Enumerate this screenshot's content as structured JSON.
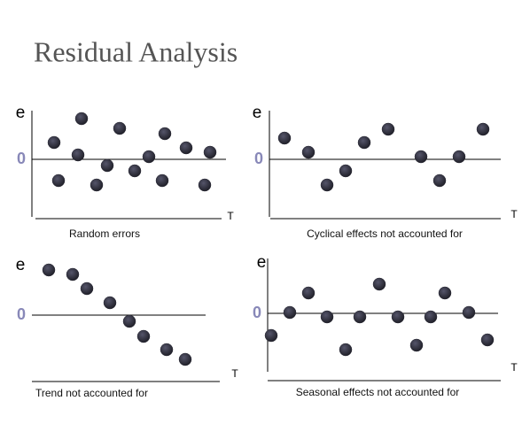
{
  "title": "Residual Analysis",
  "chart_data": [
    {
      "type": "scatter",
      "caption": "Random errors",
      "y_label": "e",
      "x_label": "T",
      "x": [
        25,
        30,
        52,
        56,
        73,
        85,
        99,
        116,
        132,
        147,
        150,
        174,
        195,
        201
      ],
      "values": [
        1.9,
        -2.4,
        0.5,
        4.6,
        -2.9,
        -0.7,
        3.5,
        -1.3,
        0.3,
        -2.4,
        2.9,
        1.3,
        -2.9,
        0.8
      ],
      "xlim": [
        0,
        219
      ],
      "ylim": [
        -6.5,
        5.5
      ],
      "yticks": [
        0
      ],
      "y_axis_line": true,
      "color": "#2b2b36"
    },
    {
      "type": "scatter",
      "caption": "Cyclical effects not accounted for",
      "y_label": "e",
      "x_label": "T",
      "x": [
        17,
        44,
        65,
        86,
        107,
        134,
        171,
        192,
        214,
        241
      ],
      "values": [
        2.4,
        0.8,
        -2.9,
        -1.3,
        1.9,
        3.4,
        0.3,
        -2.4,
        0.3,
        3.4
      ],
      "xlim": [
        0,
        261
      ],
      "ylim": [
        -6.5,
        5.5
      ],
      "yticks": [
        0
      ],
      "y_axis_line": true,
      "color": "#2b2b36"
    },
    {
      "type": "scatter",
      "caption": "Trend not accounted for",
      "y_label": "e",
      "x_label": "T",
      "x": [
        19,
        46,
        62,
        88,
        110,
        126,
        152,
        173
      ],
      "values": [
        5.1,
        4.6,
        3.0,
        1.4,
        -0.7,
        -2.4,
        -3.9,
        -5.0
      ],
      "xlim": [
        0,
        196
      ],
      "ylim": [
        -6,
        6
      ],
      "yticks": [
        0
      ],
      "y_axis_line": false,
      "color": "#2b2b36"
    },
    {
      "type": "scatter",
      "caption": "Seasonal effects not accounted for",
      "y_label": "e",
      "x_label": "T",
      "x": [
        4,
        25,
        46,
        67,
        88,
        104,
        126,
        147,
        168,
        184,
        200,
        227,
        248
      ],
      "values": [
        -2.5,
        0.1,
        2.3,
        -0.4,
        -4.1,
        -0.4,
        3.3,
        -0.4,
        -3.6,
        -0.4,
        2.3,
        0.1,
        -3.0
      ],
      "xlim": [
        0,
        260
      ],
      "ylim": [
        -6.6,
        6.2
      ],
      "yticks": [
        0
      ],
      "y_axis_line": true,
      "color": "#2b2b36"
    }
  ]
}
